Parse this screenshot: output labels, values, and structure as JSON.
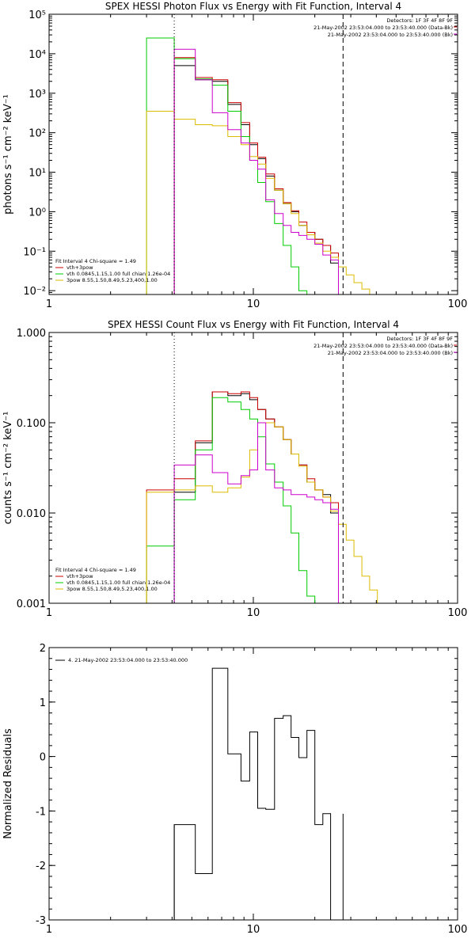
{
  "chart_data": [
    {
      "type": "line",
      "title": "SPEX HESSI Photon Flux vs Energy with Fit Function, Interval 4",
      "xlabel": "",
      "ylabel": "photons s⁻¹ cm⁻² keV⁻¹",
      "xscale": "log",
      "yscale": "log",
      "xlim": [
        1,
        100
      ],
      "ylim": [
        0.008,
        100000
      ],
      "grid": false,
      "x_ticks": [
        1,
        10,
        100
      ],
      "x_tick_labels": [
        "1",
        "10",
        "100"
      ],
      "y_ticks": [
        0.01,
        0.1,
        1,
        10,
        100,
        1000,
        10000,
        100000
      ],
      "y_tick_labels": [
        "10⁻²",
        "10⁻¹",
        "10⁰",
        "10¹",
        "10²",
        "10³",
        "10⁴",
        "10⁵"
      ],
      "vlines": [
        {
          "x": 4.1,
          "style": "dotted",
          "color": "#000000"
        },
        {
          "x": 27.5,
          "style": "dashed",
          "color": "#000000"
        }
      ],
      "header_text": [
        "Detectors: 1F 3F 4F 8F 9F",
        "21-May-2002 23:53:04.000 to 23:53:40.000 (Data-Bk)",
        "21-May-2002 23:53:04.000 to 23:53:40.000 (Bk)"
      ],
      "legend_title": "Fit Interval 4   Chi-square = 1.49",
      "legend": [
        {
          "label": "vth+3pow",
          "color": "#cc0000"
        },
        {
          "label": "vth 0.0845,1.15,1.00  full chian 1.26e-04",
          "color": "#00cc00"
        },
        {
          "label": "3pow 8.55,1.50,8.49,5.23,400,1.00",
          "color": "#ddbb00"
        }
      ],
      "edges": [
        3.0,
        4.1,
        5.2,
        6.3,
        7.5,
        8.7,
        9.6,
        10.5,
        11.5,
        12.7,
        14.0,
        15.3,
        16.7,
        18.3,
        20.0,
        21.9,
        23.9,
        26.1,
        28.5,
        31.1,
        34.0,
        37.1,
        40.5
      ],
      "series": [
        {
          "color": "#000000",
          "values": [
            null,
            5000,
            2200,
            2000,
            520,
            160,
            50,
            22,
            8,
            3.5,
            1.6,
            1.0,
            0.45,
            0.3,
            0.2,
            0.14,
            0.05,
            null,
            null,
            null,
            null,
            null
          ]
        },
        {
          "color": "#cc0000",
          "values": [
            null,
            8000,
            2500,
            2200,
            580,
            180,
            55,
            24,
            9,
            3.8,
            1.7,
            1.05,
            0.55,
            0.3,
            0.2,
            0.14,
            0.09,
            null,
            null,
            null,
            null,
            null
          ]
        },
        {
          "color": "#00cc00",
          "values": [
            25000,
            7500,
            2300,
            1600,
            350,
            80,
            20,
            5.5,
            1.8,
            0.5,
            0.14,
            0.04,
            0.01,
            null,
            null,
            null,
            null,
            null,
            null,
            null,
            null,
            null
          ]
        },
        {
          "color": "#ddbb00",
          "values": [
            350,
            220,
            160,
            150,
            80,
            50,
            25,
            16,
            7,
            3.5,
            1.6,
            0.9,
            0.45,
            0.26,
            0.16,
            0.1,
            0.07,
            0.04,
            0.025,
            0.016,
            0.011,
            null
          ]
        },
        {
          "color": "#cc00cc",
          "values": [
            null,
            13000,
            2200,
            320,
            120,
            55,
            20,
            12,
            2.0,
            0.9,
            0.45,
            0.3,
            0.25,
            0.2,
            0.15,
            0.08,
            0.06,
            null,
            null,
            null,
            null,
            null
          ]
        }
      ]
    },
    {
      "type": "line",
      "title": "SPEX HESSI Count Flux vs Energy with Fit Function, Interval 4",
      "xlabel": "",
      "ylabel": "counts s⁻¹ cm⁻² keV⁻¹",
      "xscale": "log",
      "yscale": "log",
      "xlim": [
        1,
        100
      ],
      "ylim": [
        0.001,
        1
      ],
      "grid": false,
      "x_ticks": [
        1,
        10,
        100
      ],
      "x_tick_labels": [
        "1",
        "10",
        "100"
      ],
      "y_ticks": [
        0.001,
        0.01,
        0.1,
        1
      ],
      "y_tick_labels": [
        "0.001",
        "0.010",
        "0.100",
        "1.000"
      ],
      "vlines": [
        {
          "x": 4.1,
          "style": "dotted",
          "color": "#000000"
        },
        {
          "x": 27.5,
          "style": "dashed",
          "color": "#000000"
        }
      ],
      "header_text": [
        "Detectors: 1F 3F 4F 8F 9F",
        "21-May-2002 23:53:04.000 to 23:53:40.000 (Data-Bk)",
        "21-May-2002 23:53:04.000 to 23:53:40.000 (Bk)"
      ],
      "legend_title": "Fit Interval 4   Chi-square = 1.49",
      "legend": [
        {
          "label": "vth+3pow",
          "color": "#cc0000"
        },
        {
          "label": "vth 0.0845,1.15,1.00  full chian 1.26e-04",
          "color": "#00cc00"
        },
        {
          "label": "3pow 8.55,1.50,8.49,5.23,400,1.00",
          "color": "#ddbb00"
        }
      ],
      "edges": [
        3.0,
        4.1,
        5.2,
        6.3,
        7.5,
        8.7,
        9.6,
        10.5,
        11.5,
        12.7,
        14.0,
        15.3,
        16.7,
        18.3,
        20.0,
        21.9,
        23.9,
        26.1,
        28.5,
        31.1,
        34.0,
        37.1,
        40.5,
        44.0
      ],
      "series": [
        {
          "color": "#000000",
          "values": [
            null,
            0.017,
            0.06,
            0.22,
            0.2,
            0.21,
            0.18,
            0.14,
            0.11,
            0.09,
            0.065,
            0.045,
            0.034,
            0.022,
            0.018,
            0.016,
            0.01,
            null,
            null,
            null,
            null,
            null,
            null
          ]
        },
        {
          "color": "#cc0000",
          "values": [
            0.018,
            0.024,
            0.063,
            0.22,
            0.21,
            0.22,
            0.19,
            0.14,
            0.11,
            0.09,
            0.065,
            0.045,
            0.034,
            0.024,
            0.018,
            0.015,
            0.013,
            null,
            null,
            null,
            null,
            null,
            null
          ]
        },
        {
          "color": "#00cc00",
          "values": [
            0.0043,
            0.014,
            0.05,
            0.19,
            0.17,
            0.14,
            0.11,
            0.07,
            0.035,
            0.022,
            0.012,
            0.006,
            0.0023,
            0.0012,
            null,
            null,
            null,
            null,
            null,
            null,
            null,
            null,
            null
          ]
        },
        {
          "color": "#ddbb00",
          "values": [
            0.017,
            0.018,
            0.02,
            0.017,
            0.019,
            0.025,
            0.05,
            0.1,
            0.1,
            0.09,
            0.065,
            0.045,
            0.033,
            0.022,
            0.018,
            0.015,
            0.0105,
            0.0075,
            0.005,
            0.0033,
            0.002,
            0.0014,
            0.001
          ]
        },
        {
          "color": "#cc00cc",
          "values": [
            null,
            0.034,
            0.044,
            0.028,
            0.021,
            0.026,
            0.03,
            0.1,
            0.03,
            0.019,
            0.018,
            0.016,
            0.016,
            0.015,
            0.014,
            0.013,
            0.011,
            null,
            null,
            null,
            null,
            null,
            null
          ]
        }
      ]
    },
    {
      "type": "line",
      "title": "",
      "xlabel": "",
      "ylabel": "Normalized Residuals",
      "xscale": "log",
      "yscale": "linear",
      "xlim": [
        1,
        100
      ],
      "ylim": [
        -3,
        2
      ],
      "grid": false,
      "x_ticks": [
        1,
        10,
        100
      ],
      "x_tick_labels": [
        "1",
        "10",
        "100"
      ],
      "y_ticks": [
        -3,
        -2,
        -1,
        0,
        1,
        2
      ],
      "y_tick_labels": [
        "-3",
        "-2",
        "-1",
        "0",
        "1",
        "2"
      ],
      "legend": [
        {
          "label": "4. 21-May-2002 23:53:04.000 to 23:53:40.000",
          "color": "#000000"
        }
      ],
      "edges": [
        4.1,
        5.2,
        6.3,
        7.5,
        8.7,
        9.6,
        10.5,
        11.5,
        12.7,
        14.0,
        15.3,
        16.7,
        18.3,
        20.0,
        21.9,
        23.9,
        26.1,
        27.5
      ],
      "series": [
        {
          "color": "#000000",
          "values": [
            -1.25,
            -2.15,
            1.62,
            0.05,
            -0.45,
            0.45,
            -0.95,
            -0.97,
            0.7,
            0.75,
            0.35,
            -0.02,
            0.48,
            -1.25,
            -1.05,
            null,
            null
          ]
        }
      ],
      "drop_x": [
        4.1,
        27.5
      ]
    }
  ]
}
